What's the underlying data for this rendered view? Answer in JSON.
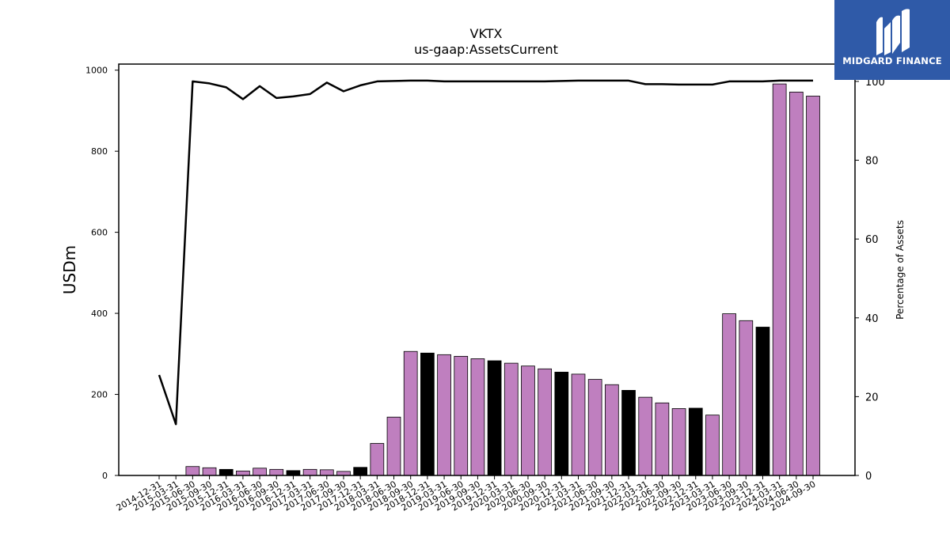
{
  "chart_data": {
    "type": "bar",
    "title": "VKTX",
    "subtitle": "us-gaap:AssetsCurrent",
    "ylabel": "USDm",
    "ylabel_right": "Percentage of Assets",
    "ylim": [
      0,
      1015
    ],
    "ylim_right": [
      0,
      104.4
    ],
    "yticks": [
      "0",
      "200",
      "400",
      "600",
      "800",
      "1000"
    ],
    "yticks_right": [
      "0",
      "20",
      "40",
      "60",
      "80",
      "100"
    ],
    "grid": false,
    "legend": "none",
    "colors": {
      "bar_default": "#bf7fbf",
      "bar_highlight": "#000000",
      "line": "#000000"
    },
    "categories": [
      "2014-12-31",
      "2015-03-31",
      "2015-06-30",
      "2015-09-30",
      "2015-12-31",
      "2016-03-31",
      "2016-06-30",
      "2016-09-30",
      "2016-12-31",
      "2017-03-31",
      "2017-06-30",
      "2017-09-30",
      "2017-12-31",
      "2018-03-31",
      "2018-06-30",
      "2018-09-30",
      "2018-12-31",
      "2019-03-31",
      "2019-06-30",
      "2019-09-30",
      "2019-12-31",
      "2020-03-31",
      "2020-06-30",
      "2020-09-30",
      "2020-12-31",
      "2021-03-31",
      "2021-06-30",
      "2021-09-30",
      "2021-12-31",
      "2022-03-31",
      "2022-06-30",
      "2022-09-30",
      "2022-12-31",
      "2023-03-31",
      "2023-06-30",
      "2023-09-30",
      "2023-12-31",
      "2024-03-31",
      "2024-06-30",
      "2024-09-30"
    ],
    "series": [
      {
        "type": "bar",
        "values": [
          0,
          0,
          22,
          19,
          15,
          11,
          18,
          15,
          12,
          15,
          14,
          10,
          20,
          79,
          144,
          306,
          302,
          298,
          294,
          288,
          283,
          277,
          270,
          263,
          255,
          250,
          237,
          224,
          210,
          193,
          179,
          165,
          166,
          149,
          399,
          382,
          366,
          966,
          946,
          936
        ],
        "highlight": [
          false,
          false,
          false,
          false,
          true,
          false,
          false,
          false,
          true,
          false,
          false,
          false,
          true,
          false,
          false,
          false,
          true,
          false,
          false,
          false,
          true,
          false,
          false,
          false,
          true,
          false,
          false,
          false,
          true,
          false,
          false,
          false,
          true,
          false,
          false,
          false,
          true,
          false,
          false,
          false
        ]
      },
      {
        "type": "line",
        "axis": "right",
        "values": [
          25.5,
          13.0,
          100.0,
          99.5,
          98.5,
          95.5,
          98.8,
          95.8,
          96.2,
          96.8,
          99.7,
          97.5,
          99.0,
          100.0,
          100.1,
          100.2,
          100.2,
          100.0,
          100.0,
          100.0,
          100.0,
          100.0,
          100.0,
          100.0,
          100.1,
          100.2,
          100.2,
          100.2,
          100.2,
          99.3,
          99.3,
          99.2,
          99.2,
          99.2,
          100.0,
          100.0,
          100.0,
          100.2,
          100.2,
          100.2
        ]
      }
    ]
  },
  "logo": {
    "text": "MIDGARD FINANCE",
    "icon": "midgard-logo-icon"
  }
}
